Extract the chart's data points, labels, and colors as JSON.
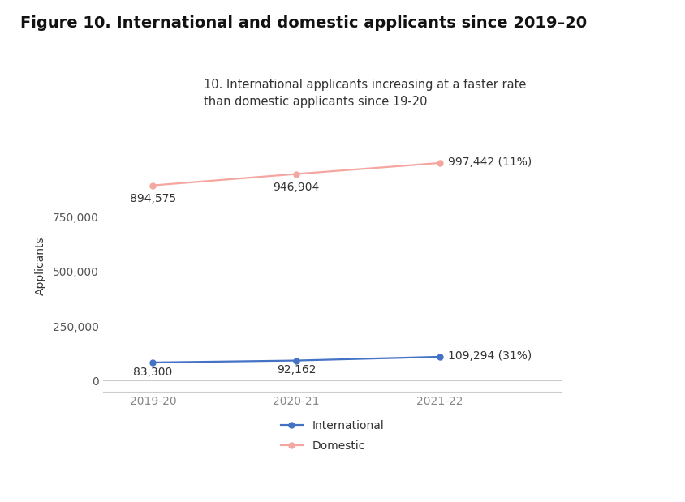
{
  "title": "Figure 10. International and domestic applicants since 2019–20",
  "subtitle": "10. International applicants increasing at a faster rate\nthan domestic applicants since 19-20",
  "years": [
    "2019-20",
    "2020-21",
    "2021-22"
  ],
  "international": [
    83300,
    92162,
    109294
  ],
  "domestic": [
    894575,
    946904,
    997442
  ],
  "intl_labels": [
    "83,300",
    "92,162",
    "109,294 (31%)"
  ],
  "dom_labels": [
    "894,575",
    "946,904",
    "997,442 (11%)"
  ],
  "intl_color": "#4472c4",
  "dom_color": "#f4a6a0",
  "ylabel": "Applicants",
  "yticks": [
    0,
    250000,
    500000,
    750000
  ],
  "ytick_labels": [
    "0",
    "250,000",
    "500,000",
    "750,000"
  ],
  "ylim": [
    -50000,
    1100000
  ],
  "bg_color": "#ffffff",
  "title_fontsize": 14,
  "subtitle_fontsize": 10.5,
  "label_fontsize": 10,
  "tick_fontsize": 10,
  "legend_fontsize": 10
}
